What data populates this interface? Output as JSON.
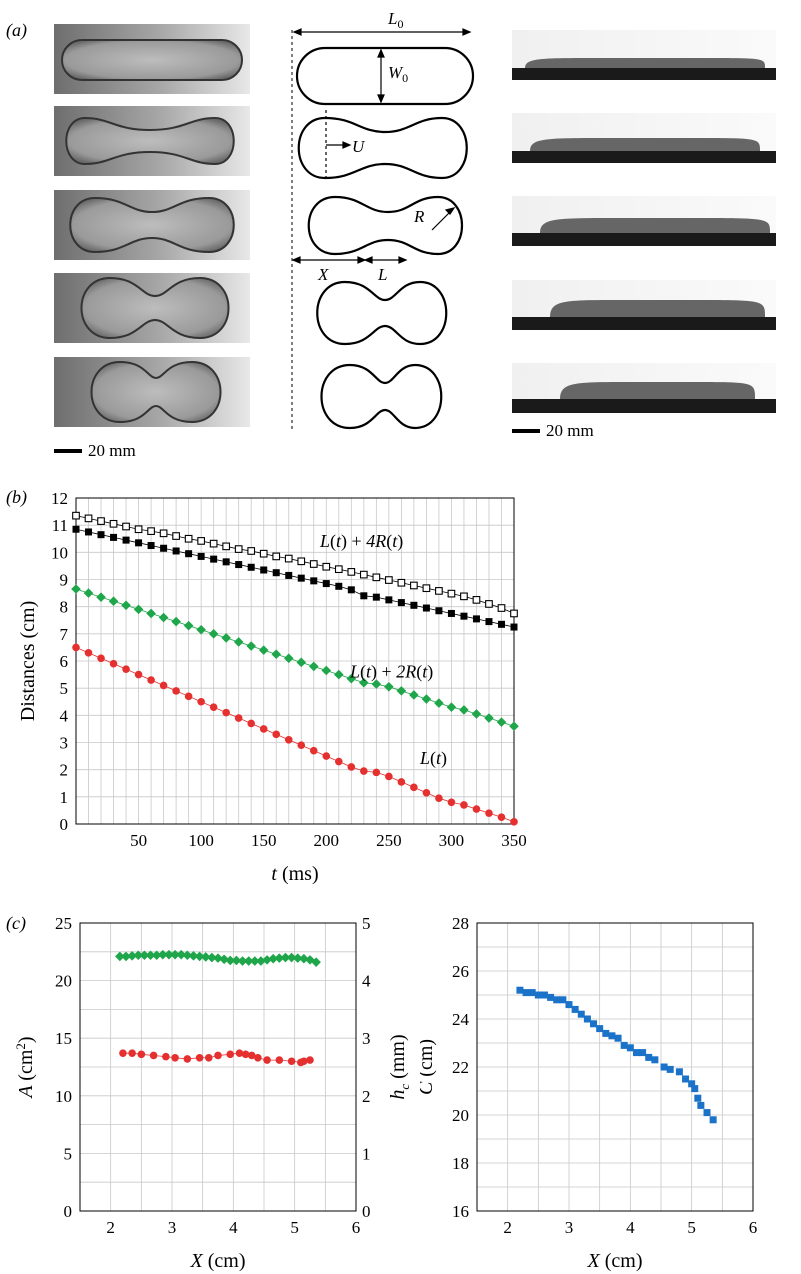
{
  "panels": {
    "a": "(a)",
    "b": "(b)",
    "c": "(c)"
  },
  "scale_bar_left": "20 mm",
  "scale_bar_right": "20 mm",
  "diagram_labels": {
    "L0": "L",
    "L0_sub": "0",
    "W0": "W",
    "W0_sub": "0",
    "U": "U",
    "R": "R",
    "X": "X",
    "L": "L"
  },
  "chart_data": [
    {
      "id": "b",
      "type": "scatter",
      "xlabel_italic": "t",
      "xlabel_rest": " (ms)",
      "ylabel": "Distances (cm)",
      "xlim": [
        0,
        350
      ],
      "ylim": [
        0,
        12
      ],
      "xticks": [
        50,
        100,
        150,
        200,
        250,
        300,
        350
      ],
      "yticks": [
        0,
        1,
        2,
        3,
        4,
        5,
        6,
        7,
        8,
        9,
        10,
        11,
        12
      ],
      "grid": true,
      "annotations": [
        "L(t) + 4R(t)",
        "L(t) + 2R(t)",
        "L(t)"
      ],
      "series": [
        {
          "marker": "open-square",
          "color": "#000000",
          "points": [
            [
              0,
              11.35
            ],
            [
              10,
              11.25
            ],
            [
              20,
              11.15
            ],
            [
              30,
              11.05
            ],
            [
              40,
              10.95
            ],
            [
              50,
              10.85
            ],
            [
              60,
              10.78
            ],
            [
              70,
              10.7
            ],
            [
              80,
              10.6
            ],
            [
              90,
              10.5
            ],
            [
              100,
              10.42
            ],
            [
              110,
              10.32
            ],
            [
              120,
              10.22
            ],
            [
              130,
              10.12
            ],
            [
              140,
              10.05
            ],
            [
              150,
              9.95
            ],
            [
              160,
              9.85
            ],
            [
              170,
              9.77
            ],
            [
              180,
              9.67
            ],
            [
              190,
              9.57
            ],
            [
              200,
              9.47
            ],
            [
              210,
              9.38
            ],
            [
              220,
              9.28
            ],
            [
              230,
              9.18
            ],
            [
              240,
              9.08
            ],
            [
              250,
              8.98
            ],
            [
              260,
              8.88
            ],
            [
              270,
              8.78
            ],
            [
              280,
              8.68
            ],
            [
              290,
              8.58
            ],
            [
              300,
              8.48
            ],
            [
              310,
              8.38
            ],
            [
              320,
              8.25
            ],
            [
              330,
              8.1
            ],
            [
              340,
              7.95
            ],
            [
              350,
              7.75
            ]
          ]
        },
        {
          "marker": "filled-square",
          "color": "#000000",
          "points": [
            [
              0,
              10.85
            ],
            [
              10,
              10.75
            ],
            [
              20,
              10.65
            ],
            [
              30,
              10.55
            ],
            [
              40,
              10.45
            ],
            [
              50,
              10.35
            ],
            [
              60,
              10.25
            ],
            [
              70,
              10.15
            ],
            [
              80,
              10.05
            ],
            [
              90,
              9.95
            ],
            [
              100,
              9.85
            ],
            [
              110,
              9.75
            ],
            [
              120,
              9.65
            ],
            [
              130,
              9.55
            ],
            [
              140,
              9.45
            ],
            [
              150,
              9.35
            ],
            [
              160,
              9.25
            ],
            [
              170,
              9.15
            ],
            [
              180,
              9.05
            ],
            [
              190,
              8.95
            ],
            [
              200,
              8.85
            ],
            [
              210,
              8.75
            ],
            [
              220,
              8.62
            ],
            [
              230,
              8.4
            ],
            [
              240,
              8.35
            ],
            [
              250,
              8.25
            ],
            [
              260,
              8.15
            ],
            [
              270,
              8.05
            ],
            [
              280,
              7.95
            ],
            [
              290,
              7.85
            ],
            [
              300,
              7.75
            ],
            [
              310,
              7.65
            ],
            [
              320,
              7.55
            ],
            [
              330,
              7.45
            ],
            [
              340,
              7.35
            ],
            [
              350,
              7.25
            ]
          ]
        },
        {
          "marker": "diamond",
          "color": "#1fa64a",
          "points": [
            [
              0,
              8.65
            ],
            [
              10,
              8.5
            ],
            [
              20,
              8.35
            ],
            [
              30,
              8.2
            ],
            [
              40,
              8.05
            ],
            [
              50,
              7.9
            ],
            [
              60,
              7.75
            ],
            [
              70,
              7.6
            ],
            [
              80,
              7.45
            ],
            [
              90,
              7.3
            ],
            [
              100,
              7.15
            ],
            [
              110,
              7.0
            ],
            [
              120,
              6.85
            ],
            [
              130,
              6.7
            ],
            [
              140,
              6.55
            ],
            [
              150,
              6.4
            ],
            [
              160,
              6.25
            ],
            [
              170,
              6.1
            ],
            [
              180,
              5.95
            ],
            [
              190,
              5.8
            ],
            [
              200,
              5.65
            ],
            [
              210,
              5.5
            ],
            [
              220,
              5.35
            ],
            [
              230,
              5.2
            ],
            [
              240,
              5.15
            ],
            [
              250,
              5.05
            ],
            [
              260,
              4.9
            ],
            [
              270,
              4.75
            ],
            [
              280,
              4.6
            ],
            [
              290,
              4.45
            ],
            [
              300,
              4.3
            ],
            [
              310,
              4.2
            ],
            [
              320,
              4.05
            ],
            [
              330,
              3.9
            ],
            [
              340,
              3.75
            ],
            [
              350,
              3.6
            ]
          ]
        },
        {
          "marker": "circle",
          "color": "#e53030",
          "points": [
            [
              0,
              6.5
            ],
            [
              10,
              6.3
            ],
            [
              20,
              6.1
            ],
            [
              30,
              5.9
            ],
            [
              40,
              5.7
            ],
            [
              50,
              5.5
            ],
            [
              60,
              5.3
            ],
            [
              70,
              5.1
            ],
            [
              80,
              4.9
            ],
            [
              90,
              4.7
            ],
            [
              100,
              4.5
            ],
            [
              110,
              4.3
            ],
            [
              120,
              4.1
            ],
            [
              130,
              3.9
            ],
            [
              140,
              3.7
            ],
            [
              150,
              3.5
            ],
            [
              160,
              3.3
            ],
            [
              170,
              3.1
            ],
            [
              180,
              2.9
            ],
            [
              190,
              2.7
            ],
            [
              200,
              2.5
            ],
            [
              210,
              2.3
            ],
            [
              220,
              2.1
            ],
            [
              230,
              1.95
            ],
            [
              240,
              1.9
            ],
            [
              250,
              1.75
            ],
            [
              260,
              1.55
            ],
            [
              270,
              1.35
            ],
            [
              280,
              1.15
            ],
            [
              290,
              0.95
            ],
            [
              300,
              0.8
            ],
            [
              310,
              0.7
            ],
            [
              320,
              0.55
            ],
            [
              330,
              0.4
            ],
            [
              340,
              0.25
            ],
            [
              350,
              0.08
            ]
          ]
        }
      ]
    },
    {
      "id": "c-left",
      "type": "scatter",
      "xlabel_italic": "X",
      "xlabel_rest": " (cm)",
      "ylabel_left_italic": "A",
      "ylabel_left_rest": "(cm",
      "ylabel_left_sup": "2",
      "ylabel_left_close": ")",
      "ylabel_right_italic": "h",
      "ylabel_right_sub": "c",
      "ylabel_right_rest": "(mm)",
      "xlim": [
        1.5,
        6
      ],
      "ylim_left": [
        0,
        25
      ],
      "ylim_right": [
        0,
        5
      ],
      "xticks": [
        2,
        3,
        4,
        5,
        6
      ],
      "yticks_left": [
        0,
        5,
        10,
        15,
        20,
        25
      ],
      "yticks_right": [
        0,
        1,
        2,
        3,
        4,
        5
      ],
      "grid": true,
      "series": [
        {
          "axis": "right",
          "marker": "diamond",
          "color": "#1fa64a",
          "points": [
            [
              2.15,
              4.42
            ],
            [
              2.25,
              4.42
            ],
            [
              2.35,
              4.43
            ],
            [
              2.45,
              4.44
            ],
            [
              2.55,
              4.44
            ],
            [
              2.65,
              4.44
            ],
            [
              2.75,
              4.44
            ],
            [
              2.85,
              4.45
            ],
            [
              2.95,
              4.45
            ],
            [
              3.05,
              4.45
            ],
            [
              3.15,
              4.45
            ],
            [
              3.25,
              4.44
            ],
            [
              3.35,
              4.43
            ],
            [
              3.45,
              4.42
            ],
            [
              3.55,
              4.41
            ],
            [
              3.65,
              4.4
            ],
            [
              3.75,
              4.39
            ],
            [
              3.85,
              4.37
            ],
            [
              3.95,
              4.35
            ],
            [
              4.05,
              4.35
            ],
            [
              4.15,
              4.34
            ],
            [
              4.25,
              4.34
            ],
            [
              4.35,
              4.34
            ],
            [
              4.45,
              4.34
            ],
            [
              4.55,
              4.36
            ],
            [
              4.65,
              4.38
            ],
            [
              4.75,
              4.39
            ],
            [
              4.85,
              4.4
            ],
            [
              4.95,
              4.4
            ],
            [
              5.05,
              4.39
            ],
            [
              5.15,
              4.38
            ],
            [
              5.25,
              4.36
            ],
            [
              5.35,
              4.32
            ]
          ]
        },
        {
          "axis": "left",
          "marker": "circle",
          "color": "#e53030",
          "points": [
            [
              2.2,
              13.7
            ],
            [
              2.35,
              13.7
            ],
            [
              2.5,
              13.6
            ],
            [
              2.7,
              13.5
            ],
            [
              2.9,
              13.4
            ],
            [
              3.05,
              13.3
            ],
            [
              3.25,
              13.2
            ],
            [
              3.45,
              13.3
            ],
            [
              3.6,
              13.3
            ],
            [
              3.75,
              13.5
            ],
            [
              3.95,
              13.6
            ],
            [
              4.1,
              13.7
            ],
            [
              4.2,
              13.6
            ],
            [
              4.3,
              13.5
            ],
            [
              4.4,
              13.3
            ],
            [
              4.55,
              13.1
            ],
            [
              4.75,
              13.1
            ],
            [
              4.95,
              13.0
            ],
            [
              5.1,
              12.9
            ],
            [
              5.15,
              13.0
            ],
            [
              5.25,
              13.1
            ]
          ]
        }
      ]
    },
    {
      "id": "c-right",
      "type": "scatter",
      "xlabel_italic": "X",
      "xlabel_rest": " (cm)",
      "ylabel_italic": "C",
      "ylabel_rest": " (cm)",
      "xlim": [
        1.5,
        6
      ],
      "ylim": [
        16,
        28
      ],
      "xticks": [
        2,
        3,
        4,
        5,
        6
      ],
      "yticks": [
        16,
        18,
        20,
        22,
        24,
        26,
        28
      ],
      "grid": true,
      "series": [
        {
          "marker": "filled-square",
          "color": "#1a73c8",
          "points": [
            [
              2.2,
              25.2
            ],
            [
              2.3,
              25.1
            ],
            [
              2.4,
              25.1
            ],
            [
              2.5,
              25.0
            ],
            [
              2.6,
              25.0
            ],
            [
              2.7,
              24.9
            ],
            [
              2.8,
              24.8
            ],
            [
              2.9,
              24.8
            ],
            [
              3.0,
              24.6
            ],
            [
              3.1,
              24.4
            ],
            [
              3.2,
              24.2
            ],
            [
              3.3,
              24.0
            ],
            [
              3.4,
              23.8
            ],
            [
              3.5,
              23.6
            ],
            [
              3.6,
              23.4
            ],
            [
              3.7,
              23.3
            ],
            [
              3.8,
              23.2
            ],
            [
              3.9,
              22.9
            ],
            [
              4.0,
              22.8
            ],
            [
              4.1,
              22.6
            ],
            [
              4.2,
              22.6
            ],
            [
              4.3,
              22.4
            ],
            [
              4.4,
              22.3
            ],
            [
              4.55,
              22.0
            ],
            [
              4.65,
              21.9
            ],
            [
              4.8,
              21.8
            ],
            [
              4.9,
              21.5
            ],
            [
              5.0,
              21.3
            ],
            [
              5.05,
              21.1
            ],
            [
              5.1,
              20.7
            ],
            [
              5.15,
              20.4
            ],
            [
              5.25,
              20.1
            ],
            [
              5.35,
              19.8
            ]
          ]
        }
      ]
    }
  ]
}
